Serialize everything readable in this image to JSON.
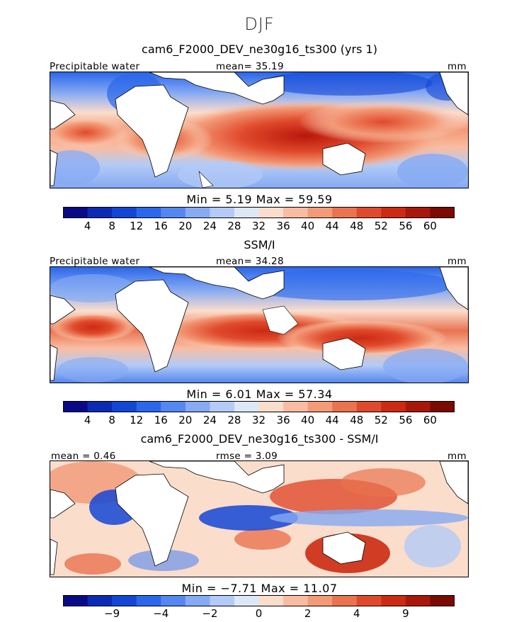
{
  "figure": {
    "title": "DJF"
  },
  "panels": [
    {
      "id": "model",
      "title": "cam6_F2000_DEV_ne30g16_ts300 (yrs 1)",
      "left_label": "Precipitable water",
      "center_label": "mean=  35.19",
      "unit": "mm",
      "minmax": "Min =    5.19  Max =   59.59",
      "colorbar": {
        "colors": [
          "#0a0a86",
          "#0c2bb5",
          "#1446d6",
          "#2b67ea",
          "#5487ef",
          "#86aaf3",
          "#b3cbf6",
          "#dce8f8",
          "#fbddcc",
          "#f9bca2",
          "#f39a77",
          "#ea7350",
          "#e04a2c",
          "#cc2a12",
          "#a8180a",
          "#7a0a02"
        ],
        "ticks": [
          "4",
          "8",
          "12",
          "16",
          "20",
          "24",
          "28",
          "32",
          "36",
          "40",
          "44",
          "48",
          "52",
          "56",
          "60"
        ]
      }
    },
    {
      "id": "obs",
      "title": "SSM/I",
      "left_label": "Precipitable water",
      "center_label": "mean=  34.28",
      "unit": "mm",
      "minmax": "Min =    6.01  Max =   57.34",
      "colorbar": {
        "colors": [
          "#0a0a86",
          "#0c2bb5",
          "#1446d6",
          "#2b67ea",
          "#5487ef",
          "#86aaf3",
          "#b3cbf6",
          "#dce8f8",
          "#fbddcc",
          "#f9bca2",
          "#f39a77",
          "#ea7350",
          "#e04a2c",
          "#cc2a12",
          "#a8180a",
          "#7a0a02"
        ],
        "ticks": [
          "4",
          "8",
          "12",
          "16",
          "20",
          "24",
          "28",
          "32",
          "36",
          "40",
          "44",
          "48",
          "52",
          "56",
          "60"
        ]
      }
    },
    {
      "id": "diff",
      "title": "cam6_F2000_DEV_ne30g16_ts300 - SSM/I",
      "left_label": "mean =   0.46",
      "center_label": "rmse =   3.09",
      "unit": "mm",
      "minmax": "Min =  −7.71  Max =   11.07",
      "colorbar": {
        "colors": [
          "#0a0a86",
          "#0c2bb5",
          "#1446d6",
          "#2b67ea",
          "#5487ef",
          "#86aaf3",
          "#b3cbf6",
          "#dce8f8",
          "#fbddcc",
          "#f9bca2",
          "#f39a77",
          "#ea7350",
          "#e04a2c",
          "#cc2a12",
          "#a8180a",
          "#7a0a02"
        ],
        "ticks": [
          "−9",
          "−4",
          "−2",
          "0",
          "2",
          "4",
          "9"
        ]
      }
    }
  ]
}
